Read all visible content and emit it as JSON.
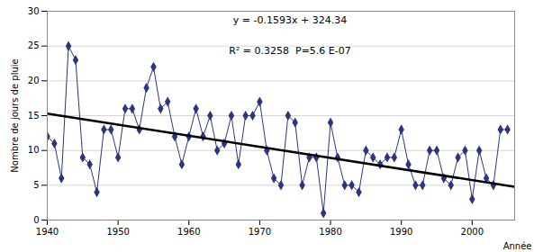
{
  "chart_data": {
    "type": "line",
    "x": [
      1940,
      1941,
      1942,
      1943,
      1944,
      1945,
      1946,
      1947,
      1948,
      1949,
      1950,
      1951,
      1952,
      1953,
      1954,
      1955,
      1956,
      1957,
      1958,
      1959,
      1960,
      1961,
      1962,
      1963,
      1964,
      1965,
      1966,
      1967,
      1968,
      1969,
      1970,
      1971,
      1972,
      1973,
      1974,
      1975,
      1976,
      1977,
      1978,
      1979,
      1980,
      1981,
      1982,
      1983,
      1984,
      1985,
      1986,
      1987,
      1988,
      1989,
      1990,
      1991,
      1992,
      1993,
      1994,
      1995,
      1996,
      1997,
      1998,
      1999,
      2000,
      2001,
      2002,
      2003,
      2004,
      2005
    ],
    "series": [
      {
        "color": "#2D3580",
        "marker": "diamond",
        "values": [
          12,
          11,
          6,
          25,
          23,
          9,
          8,
          4,
          13,
          13,
          9,
          16,
          16,
          13,
          19,
          22,
          16,
          17,
          12,
          8,
          12,
          16,
          12,
          15,
          10,
          11,
          15,
          8,
          15,
          15,
          17,
          10,
          6,
          5,
          15,
          14,
          5,
          9,
          9,
          1,
          14,
          9,
          5,
          5,
          4,
          10,
          9,
          8,
          9,
          9,
          13,
          8,
          5,
          5,
          10,
          10,
          6,
          5,
          9,
          10,
          3,
          10,
          6,
          5,
          13,
          13
        ]
      },
      {
        "color": "#000000",
        "x": [
          1940,
          2006
        ],
        "values": [
          15.298,
          4.7842
        ]
      }
    ],
    "annotations": [
      "y = -0.1593x + 324.34",
      "R² = 0.3258  P=5.6 E-07"
    ],
    "xlabel": "Année",
    "ylabel": "Nombre de jours de pluie",
    "xlim": [
      1940,
      2006
    ],
    "ylim": [
      0,
      30
    ],
    "xticks": [
      1940,
      1950,
      1960,
      1970,
      1980,
      1990,
      2000
    ],
    "yticks": [
      0,
      5,
      10,
      15,
      20,
      25,
      30
    ],
    "grid": true
  }
}
